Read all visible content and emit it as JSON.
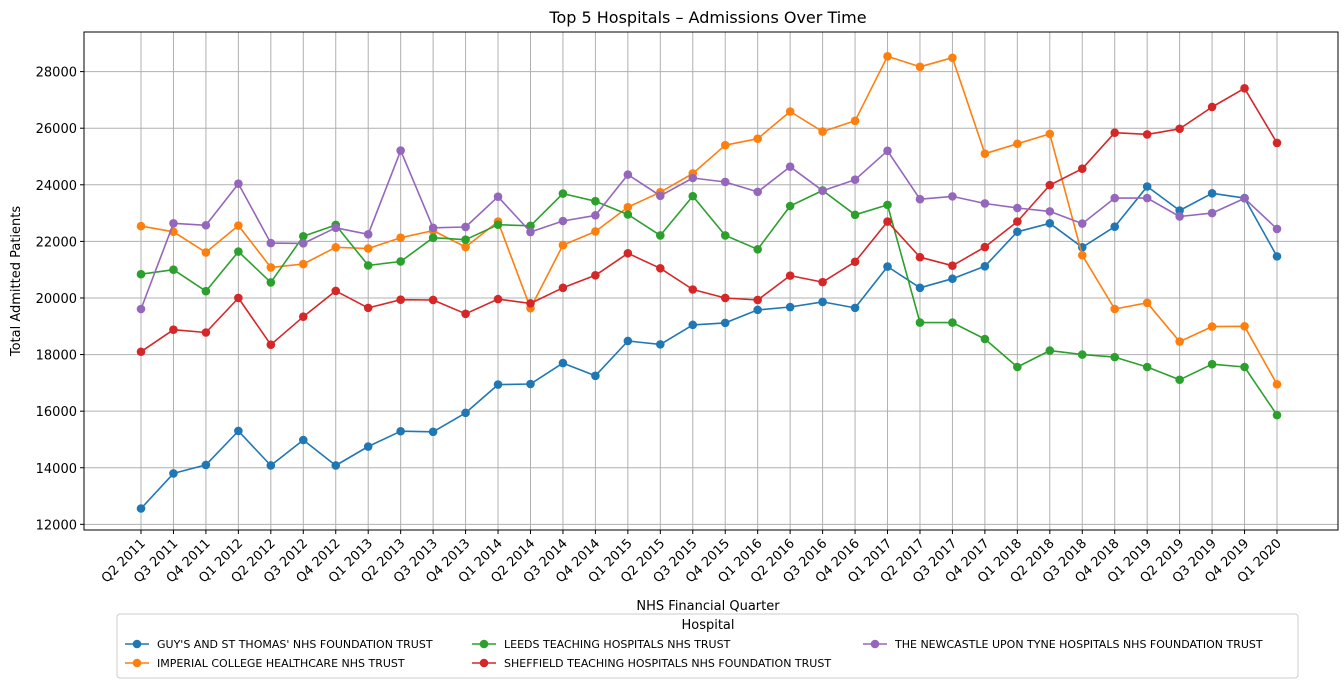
{
  "chart_data": {
    "type": "line",
    "title": "Top 5 Hospitals – Admissions Over Time",
    "xlabel": "NHS Financial Quarter",
    "ylabel": "Total Admitted Patients",
    "ylim": [
      11800,
      29400
    ],
    "yticks": [
      12000,
      14000,
      16000,
      18000,
      20000,
      22000,
      24000,
      26000,
      28000
    ],
    "grid": true,
    "legend_placement": "bottom-center",
    "legend_title": "Hospital",
    "categories": [
      "Q2 2011",
      "Q3 2011",
      "Q4 2011",
      "Q1 2012",
      "Q2 2012",
      "Q3 2012",
      "Q4 2012",
      "Q1 2013",
      "Q2 2013",
      "Q3 2013",
      "Q4 2013",
      "Q1 2014",
      "Q2 2014",
      "Q3 2014",
      "Q4 2014",
      "Q1 2015",
      "Q2 2015",
      "Q3 2015",
      "Q4 2015",
      "Q1 2016",
      "Q2 2016",
      "Q3 2016",
      "Q4 2016",
      "Q1 2017",
      "Q2 2017",
      "Q3 2017",
      "Q4 2017",
      "Q1 2018",
      "Q2 2018",
      "Q3 2018",
      "Q4 2018",
      "Q1 2019",
      "Q2 2019",
      "Q3 2019",
      "Q4 2019",
      "Q1 2020"
    ],
    "series": [
      {
        "name": "GUY'S AND ST THOMAS' NHS FOUNDATION TRUST",
        "color": "#1f77b4",
        "values": [
          12560,
          13800,
          14100,
          15300,
          14080,
          14980,
          14080,
          14750,
          15290,
          15270,
          15940,
          16940,
          16960,
          17700,
          17250,
          18480,
          18360,
          19050,
          19120,
          19580,
          19680,
          19860,
          19650,
          21110,
          20360,
          20680,
          21120,
          22340,
          22640,
          21790,
          22520,
          23940,
          23090,
          23700,
          23530,
          21470
        ]
      },
      {
        "name": "IMPERIAL COLLEGE HEALTHCARE NHS TRUST",
        "color": "#ff7f0e",
        "values": [
          22540,
          22340,
          21610,
          22560,
          21080,
          21200,
          21790,
          21750,
          22130,
          22380,
          21800,
          22700,
          19640,
          21870,
          22350,
          23210,
          23740,
          24400,
          25400,
          25630,
          26590,
          25880,
          26260,
          28540,
          28170,
          28490,
          25100,
          25450,
          25800,
          21510,
          19610,
          19830,
          18460,
          18990,
          19000,
          16950
        ]
      },
      {
        "name": "LEEDS TEACHING HOSPITALS NHS TRUST",
        "color": "#2ca02c",
        "values": [
          20840,
          21000,
          20240,
          21640,
          20550,
          22180,
          22580,
          21150,
          21290,
          22130,
          22060,
          22590,
          22550,
          23690,
          23420,
          22950,
          22210,
          23600,
          22210,
          21720,
          23250,
          23800,
          22940,
          23290,
          19130,
          19130,
          18550,
          17560,
          18140,
          18000,
          17910,
          17560,
          17110,
          17660,
          17560,
          15860
        ]
      },
      {
        "name": "SHEFFIELD TEACHING HOSPITALS NHS FOUNDATION TRUST",
        "color": "#d62728",
        "values": [
          18100,
          18880,
          18780,
          20000,
          18350,
          19340,
          20250,
          19650,
          19940,
          19930,
          19440,
          19960,
          19810,
          20360,
          20800,
          21580,
          21050,
          20300,
          20000,
          19930,
          20790,
          20560,
          21280,
          22700,
          21440,
          21140,
          21800,
          22700,
          23990,
          24570,
          25840,
          25780,
          25980,
          26750,
          27410,
          25480
        ]
      },
      {
        "name": "THE NEWCASTLE UPON TYNE HOSPITALS NHS FOUNDATION TRUST",
        "color": "#9467bd",
        "values": [
          19610,
          22640,
          22570,
          24040,
          21940,
          21930,
          22480,
          22250,
          25210,
          22480,
          22510,
          23580,
          22330,
          22720,
          22920,
          24360,
          23610,
          24240,
          24100,
          23750,
          24640,
          23790,
          24180,
          25200,
          23490,
          23590,
          23340,
          23180,
          23060,
          22630,
          23530,
          23530,
          22880,
          23000,
          23520,
          22440
        ]
      }
    ]
  }
}
